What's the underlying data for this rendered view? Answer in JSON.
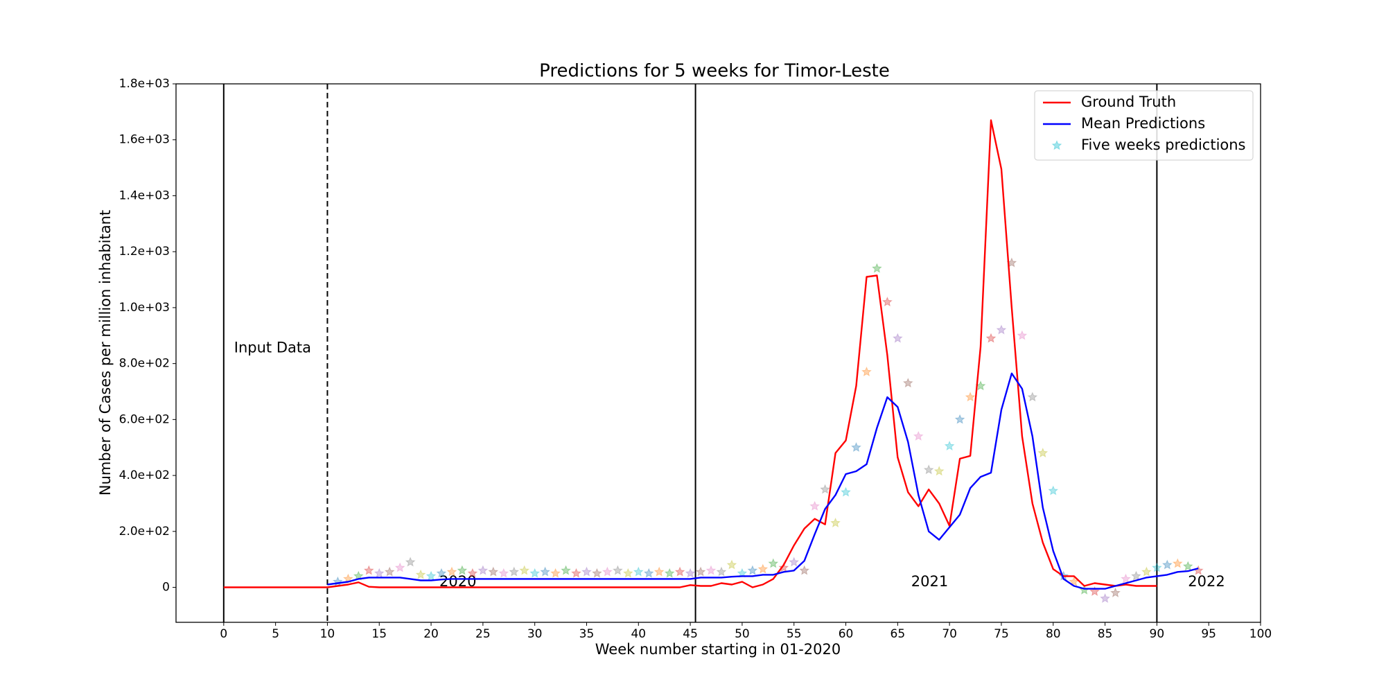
{
  "chart_data": {
    "type": "line",
    "title": "Predictions for 5 weeks for Timor-Leste",
    "xlabel": "Week number starting in 01-2020",
    "ylabel": "Number of Cases per million inhabitant",
    "xlim": [
      -4.6,
      100
    ],
    "ylim": [
      -125,
      1800
    ],
    "xticks": [
      0,
      5,
      10,
      15,
      20,
      25,
      30,
      35,
      40,
      45,
      50,
      55,
      60,
      65,
      70,
      75,
      80,
      85,
      90,
      95,
      100
    ],
    "yticks": [
      0,
      {
        "value": 200,
        "label": "2.0e+02"
      },
      {
        "value": 400,
        "label": "4.0e+02"
      },
      {
        "value": 600,
        "label": "6.0e+02"
      },
      {
        "value": 800,
        "label": "8.0e+02"
      },
      {
        "value": 1000,
        "label": "1.0e+03"
      },
      {
        "value": 1200,
        "label": "1.2e+03"
      },
      {
        "value": 1400,
        "label": "1.4e+03"
      },
      {
        "value": 1600,
        "label": "1.6e+03"
      },
      {
        "value": 1800,
        "label": "1.8e+03"
      }
    ],
    "legend": "upper right",
    "vlines": [
      {
        "x": 0,
        "style": "solid"
      },
      {
        "x": 10,
        "style": "dashed"
      },
      {
        "x": 45.5,
        "style": "solid"
      },
      {
        "x": 90,
        "style": "solid"
      }
    ],
    "annotations": [
      {
        "text": "Input Data",
        "x": 1,
        "y": 855
      },
      {
        "text": "2020",
        "x": 20.8,
        "y": 19
      },
      {
        "text": "2021",
        "x": 66.3,
        "y": 19
      },
      {
        "text": "2022",
        "x": 93,
        "y": 19
      }
    ],
    "series": [
      {
        "name": "Ground Truth",
        "kind": "line",
        "color": "#ff0000",
        "x": [
          0,
          1,
          2,
          3,
          4,
          5,
          6,
          7,
          8,
          9,
          10,
          11,
          12,
          13,
          14,
          15,
          16,
          17,
          18,
          19,
          20,
          21,
          22,
          23,
          24,
          25,
          26,
          27,
          28,
          29,
          30,
          31,
          32,
          33,
          34,
          35,
          36,
          37,
          38,
          39,
          40,
          41,
          42,
          43,
          44,
          45,
          46,
          47,
          48,
          49,
          50,
          51,
          52,
          53,
          54,
          55,
          56,
          57,
          58,
          59,
          60,
          61,
          62,
          63,
          64,
          65,
          66,
          67,
          68,
          69,
          70,
          71,
          72,
          73,
          74,
          75,
          76,
          77,
          78,
          79,
          80,
          81,
          82,
          83,
          84,
          85,
          86,
          87,
          88,
          89,
          90
        ],
        "values": [
          0,
          0,
          0,
          0,
          0,
          0,
          0,
          0,
          0,
          0,
          0,
          5,
          10,
          18,
          2,
          0,
          0,
          0,
          0,
          0,
          0,
          0,
          0,
          0,
          0,
          0,
          0,
          0,
          0,
          0,
          0,
          0,
          0,
          0,
          0,
          0,
          0,
          0,
          0,
          0,
          0,
          0,
          0,
          0,
          0,
          8,
          5,
          5,
          15,
          10,
          20,
          0,
          10,
          30,
          80,
          150,
          210,
          245,
          225,
          480,
          525,
          720,
          1110,
          1115,
          830,
          465,
          340,
          290,
          350,
          300,
          220,
          460,
          470,
          860,
          1670,
          1495,
          1000,
          540,
          300,
          160,
          65,
          40,
          40,
          5,
          15,
          10,
          5,
          10,
          5,
          5,
          5
        ]
      },
      {
        "name": "Mean Predictions",
        "kind": "line",
        "color": "#0000ff",
        "x": [
          10,
          11,
          12,
          13,
          14,
          15,
          16,
          17,
          18,
          19,
          20,
          21,
          22,
          23,
          24,
          25,
          26,
          27,
          28,
          29,
          30,
          31,
          32,
          33,
          34,
          35,
          36,
          37,
          38,
          39,
          40,
          41,
          42,
          43,
          44,
          45,
          46,
          47,
          48,
          49,
          50,
          51,
          52,
          53,
          54,
          55,
          56,
          57,
          58,
          59,
          60,
          61,
          62,
          63,
          64,
          65,
          66,
          67,
          68,
          69,
          70,
          71,
          72,
          73,
          74,
          75,
          76,
          77,
          78,
          79,
          80,
          81,
          82,
          83,
          84,
          85,
          86,
          87,
          88,
          89,
          90,
          91,
          92,
          93,
          94
        ],
        "values": [
          10,
          15,
          20,
          30,
          35,
          35,
          35,
          35,
          30,
          25,
          25,
          28,
          30,
          30,
          30,
          30,
          30,
          30,
          30,
          30,
          30,
          30,
          30,
          30,
          30,
          30,
          30,
          30,
          30,
          30,
          30,
          30,
          30,
          30,
          30,
          30,
          35,
          35,
          35,
          38,
          40,
          40,
          45,
          45,
          55,
          60,
          95,
          190,
          280,
          330,
          405,
          415,
          440,
          570,
          680,
          645,
          520,
          330,
          200,
          170,
          215,
          260,
          355,
          395,
          410,
          635,
          765,
          710,
          540,
          285,
          130,
          30,
          5,
          -5,
          -5,
          -5,
          5,
          15,
          25,
          35,
          40,
          45,
          55,
          58,
          68
        ]
      },
      {
        "name": "Five weeks predictions",
        "kind": "scatter",
        "color": "#17becf",
        "point_colors": [
          "#1f77b4",
          "#ff7f0e",
          "#2ca02c",
          "#d62728",
          "#9467bd",
          "#8c564b",
          "#e377c2",
          "#7f7f7f",
          "#bcbd22",
          "#17becf"
        ],
        "x": [
          11,
          12,
          13,
          14,
          15,
          16,
          17,
          18,
          19,
          20,
          21,
          22,
          23,
          24,
          25,
          26,
          27,
          28,
          29,
          30,
          31,
          32,
          33,
          34,
          35,
          36,
          37,
          38,
          39,
          40,
          41,
          42,
          43,
          44,
          45,
          46,
          47,
          48,
          49,
          50,
          51,
          52,
          53,
          54,
          55,
          56,
          57,
          58,
          59,
          60,
          61,
          62,
          63,
          64,
          65,
          66,
          67,
          68,
          69,
          70,
          71,
          72,
          73,
          74,
          75,
          76,
          77,
          78,
          79,
          80,
          81,
          82,
          83,
          84,
          85,
          86,
          87,
          88,
          89,
          90,
          91,
          92,
          93,
          94
        ],
        "values": [
          20,
          30,
          40,
          60,
          50,
          55,
          70,
          90,
          45,
          40,
          50,
          55,
          60,
          50,
          60,
          55,
          50,
          55,
          60,
          50,
          55,
          50,
          60,
          50,
          55,
          50,
          55,
          60,
          50,
          55,
          50,
          55,
          50,
          55,
          50,
          55,
          60,
          55,
          80,
          50,
          60,
          65,
          85,
          70,
          90,
          60,
          290,
          350,
          230,
          340,
          500,
          770,
          1140,
          1020,
          890,
          730,
          540,
          420,
          415,
          505,
          600,
          680,
          720,
          890,
          920,
          1160,
          900,
          680,
          480,
          345,
          40,
          20,
          -10,
          -15,
          -40,
          -20,
          30,
          40,
          55,
          70,
          80,
          85,
          75,
          60
        ]
      }
    ]
  }
}
